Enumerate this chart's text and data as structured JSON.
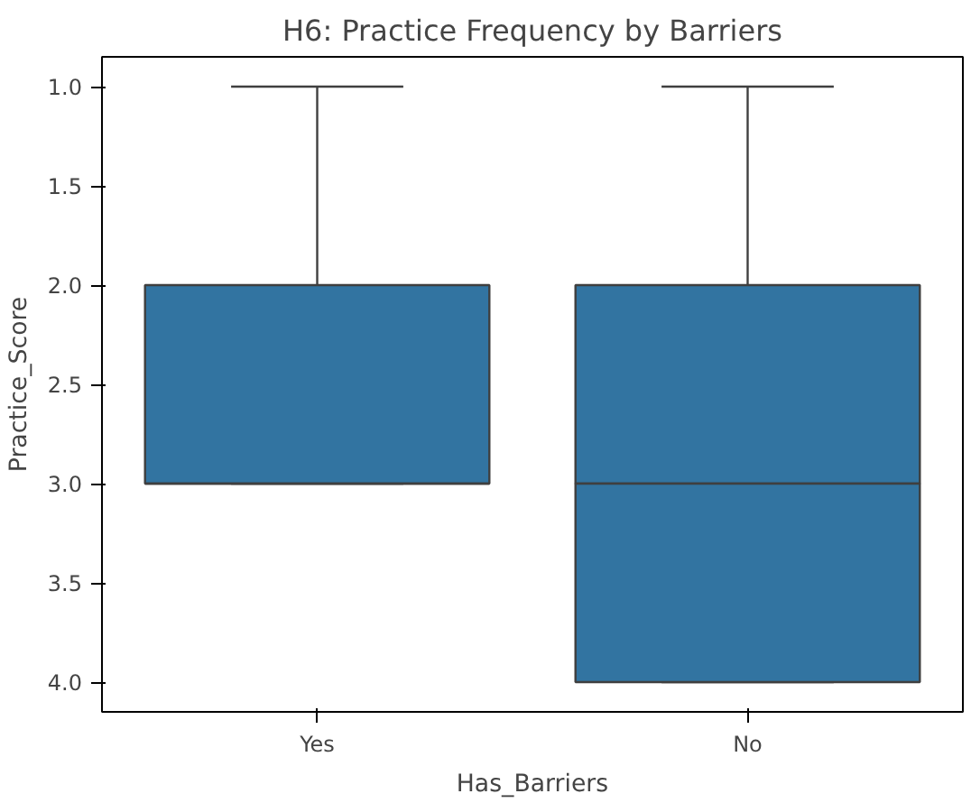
{
  "chart_data": {
    "type": "box",
    "title": "H6: Practice Frequency by Barriers",
    "xlabel": "Has_Barriers",
    "ylabel": "Practice_Score",
    "categories": [
      "Yes",
      "No"
    ],
    "color": "#3274a1",
    "boxes": [
      {
        "low": 1.0,
        "q1": 2.0,
        "median": 3.0,
        "q3": 3.0,
        "high": 3.0
      },
      {
        "low": 1.0,
        "q1": 2.0,
        "median": 3.0,
        "q3": 4.0,
        "high": 4.0
      }
    ],
    "ylim": [
      4.15,
      0.85
    ],
    "yticks": [
      {
        "value": 1.0,
        "label": "1.0"
      },
      {
        "value": 1.5,
        "label": "1.5"
      },
      {
        "value": 2.0,
        "label": "2.0"
      },
      {
        "value": 2.5,
        "label": "2.5"
      },
      {
        "value": 3.0,
        "label": "3.0"
      },
      {
        "value": 3.5,
        "label": "3.5"
      },
      {
        "value": 4.0,
        "label": "4.0"
      }
    ]
  }
}
